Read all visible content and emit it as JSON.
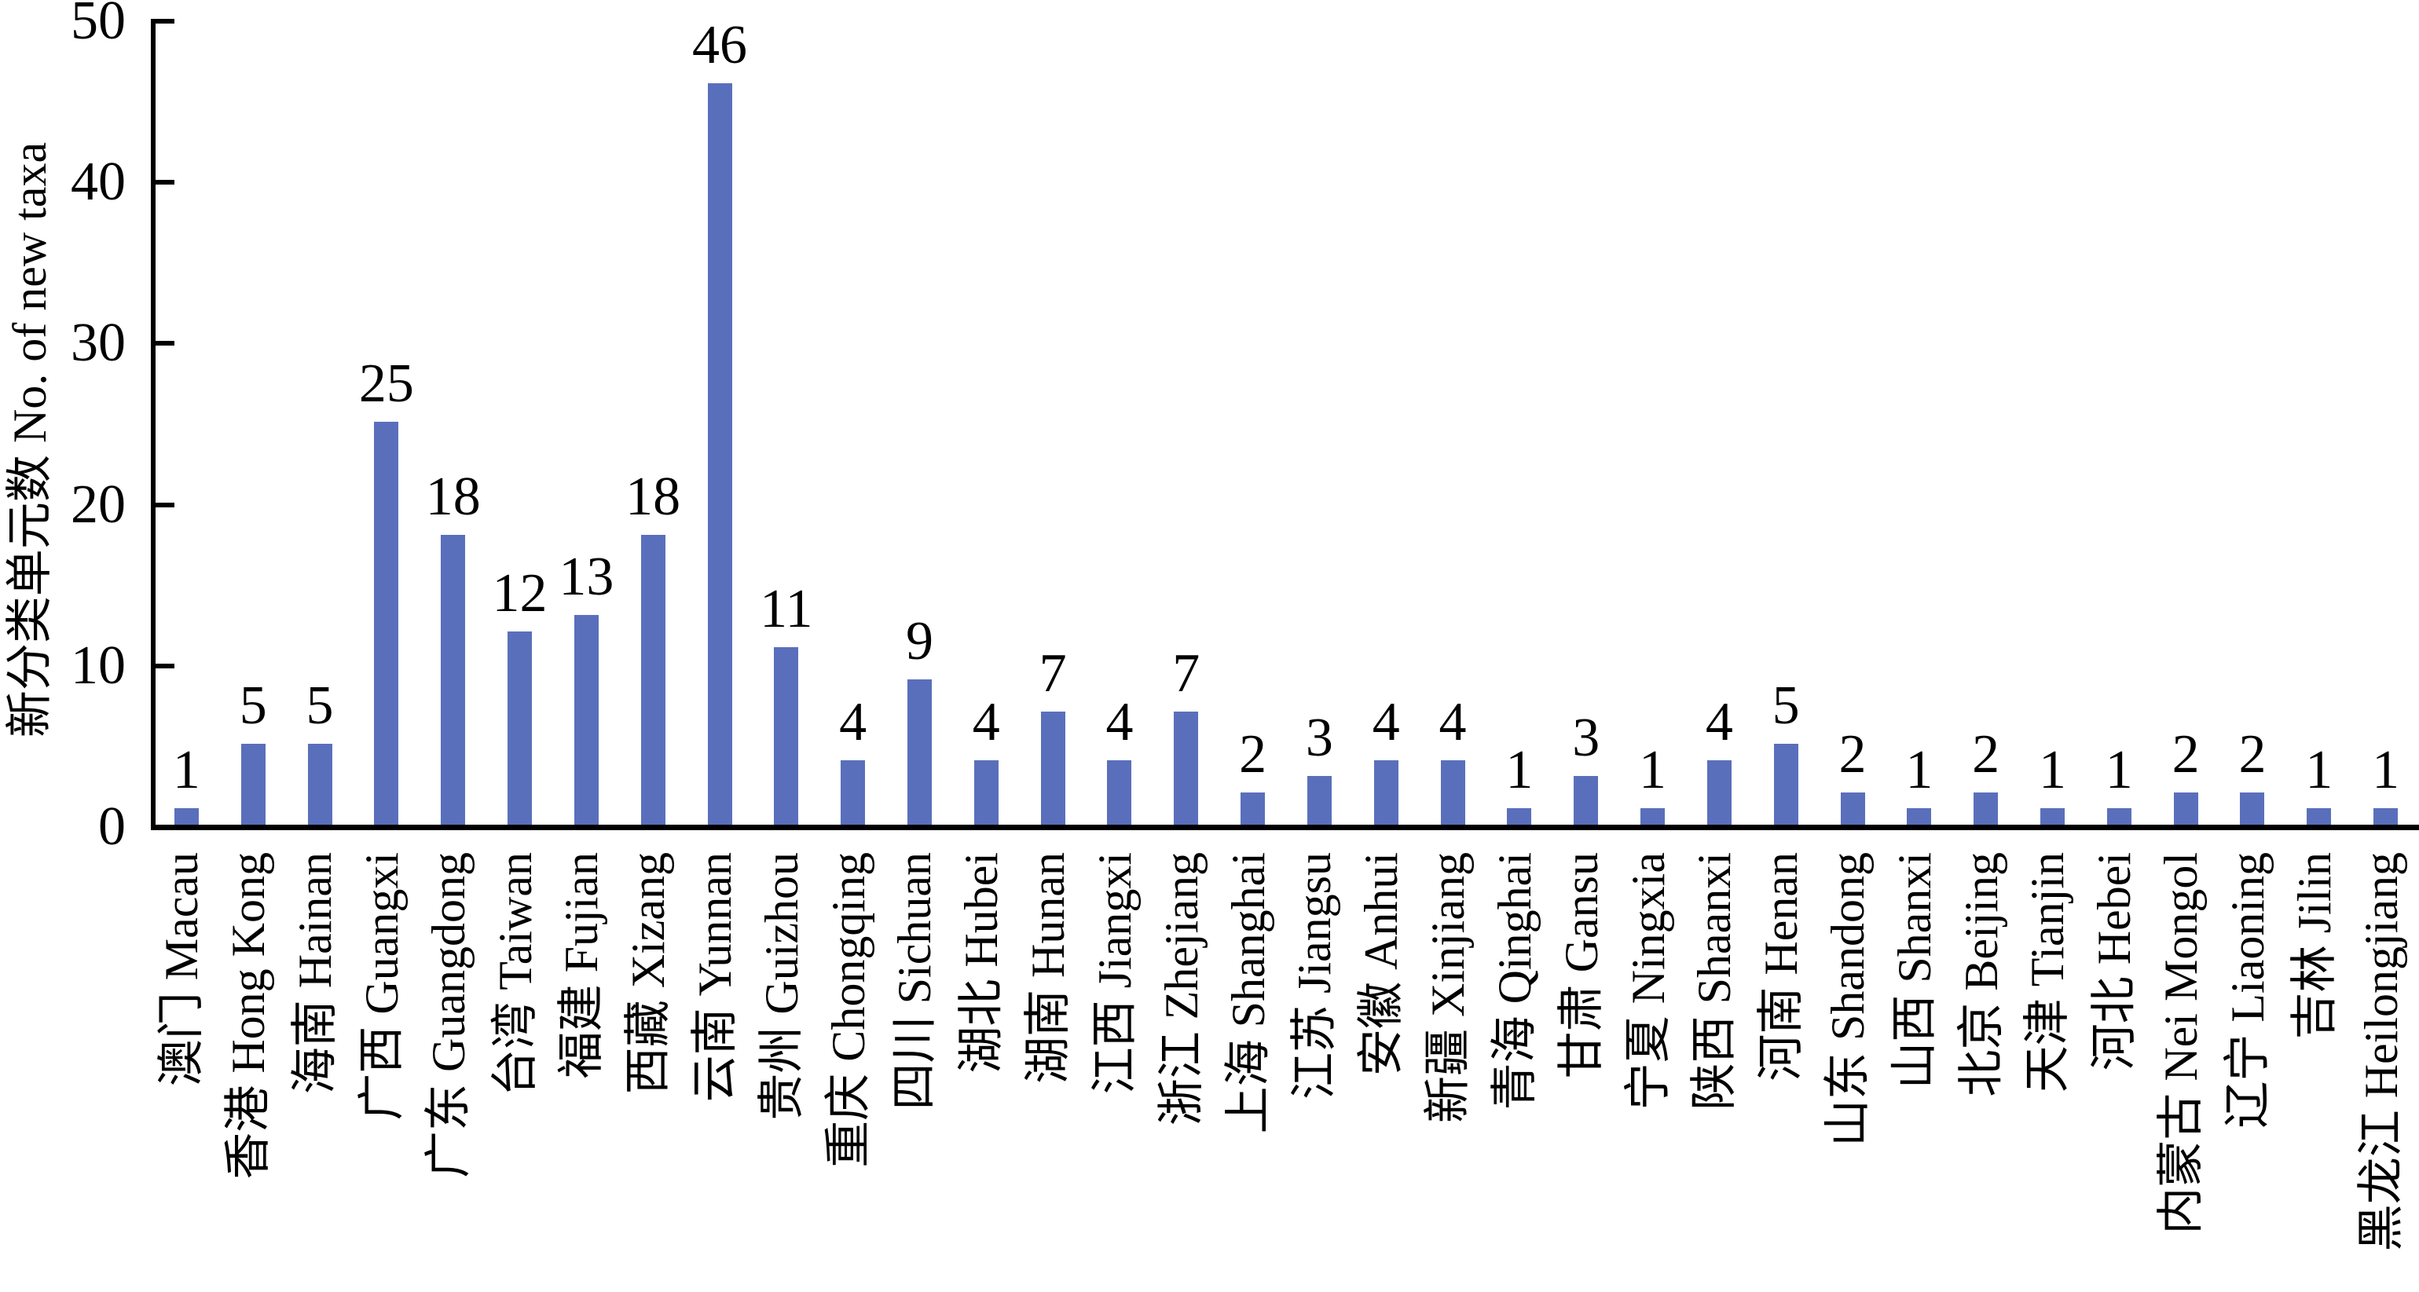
{
  "chart_data": {
    "type": "bar",
    "title": "",
    "ylabel": "新分类单元数 No. of new taxa",
    "xlabel": "",
    "ylim": [
      0,
      50
    ],
    "yticks": [
      0,
      10,
      20,
      30,
      40,
      50
    ],
    "grid": false,
    "legend": null,
    "value_labels_shown": true,
    "bar_color": "#5A6FBB",
    "axis_color": "#000000",
    "text_color": "#000000",
    "background_color": "#FFFFFF",
    "categories": [
      "澳门 Macau",
      "香港 Hong Kong",
      "海南 Hainan",
      "广西 Guangxi",
      "广东 Guangdong",
      "台湾 Taiwan",
      "福建 Fujian",
      "西藏 Xizang",
      "云南 Yunnan",
      "贵州 Guizhou",
      "重庆 Chongqing",
      "四川 Sichuan",
      "湖北 Hubei",
      "湖南 Hunan",
      "江西 Jiangxi",
      "浙江 Zhejiang",
      "上海 Shanghai",
      "江苏 Jiangsu",
      "安徽 Anhui",
      "新疆 Xinjiang",
      "青海 Qinghai",
      "甘肃 Gansu",
      "宁夏 Ningxia",
      "陕西 Shaanxi",
      "河南 Henan",
      "山东 Shandong",
      "山西 Shanxi",
      "北京 Beijing",
      "天津 Tianjin",
      "河北 Hebei",
      "内蒙古 Nei Mongol",
      "辽宁 Liaoning",
      "吉林 Jilin",
      "黑龙江 Heilongjiang"
    ],
    "values": [
      1,
      5,
      5,
      25,
      18,
      12,
      13,
      18,
      46,
      11,
      4,
      9,
      4,
      7,
      4,
      7,
      2,
      3,
      4,
      4,
      1,
      3,
      1,
      4,
      5,
      2,
      1,
      2,
      1,
      1,
      2,
      2,
      1,
      1
    ]
  }
}
